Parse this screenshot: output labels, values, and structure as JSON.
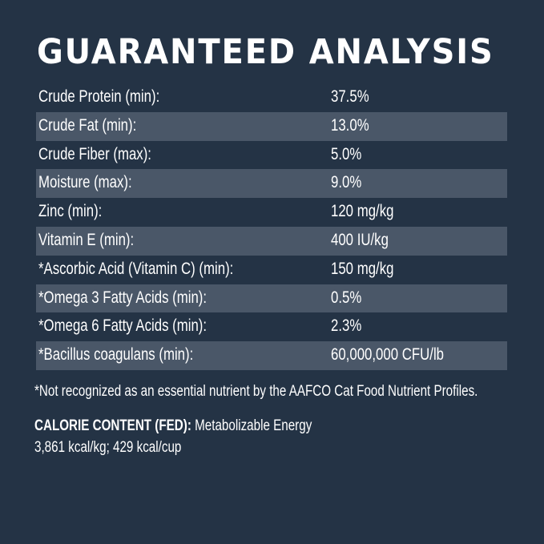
{
  "title": "GUARANTEED ANALYSIS",
  "rows": [
    {
      "label": "Crude Protein (min):",
      "value": "37.5%"
    },
    {
      "label": "Crude Fat (min):",
      "value": "13.0%"
    },
    {
      "label": "Crude Fiber (max):",
      "value": "5.0%"
    },
    {
      "label": "Moisture (max):",
      "value": "9.0%"
    },
    {
      "label": "Zinc (min):",
      "value": "120 mg/kg"
    },
    {
      "label": "Vitamin E (min):",
      "value": "400 IU/kg"
    },
    {
      "label": "*Ascorbic Acid (Vitamin C) (min):",
      "value": "150 mg/kg"
    },
    {
      "label": "*Omega 3 Fatty Acids (min):",
      "value": "0.5%"
    },
    {
      "label": "*Omega 6 Fatty Acids (min):",
      "value": "2.3%"
    },
    {
      "label": "*Bacillus coagulans (min):",
      "value": "60,000,000 CFU/lb"
    }
  ],
  "footnote": "*Not recognized as an essential nutrient by the AAFCO Cat Food Nutrient Profiles.",
  "calorie": {
    "heading": "CALORIE CONTENT (FED):",
    "text": "Metabolizable Energy",
    "values": "3,861 kcal/kg; 429 kcal/cup"
  },
  "colors": {
    "background": "#243345",
    "stripe": "#4a5768",
    "text": "#ffffff"
  }
}
